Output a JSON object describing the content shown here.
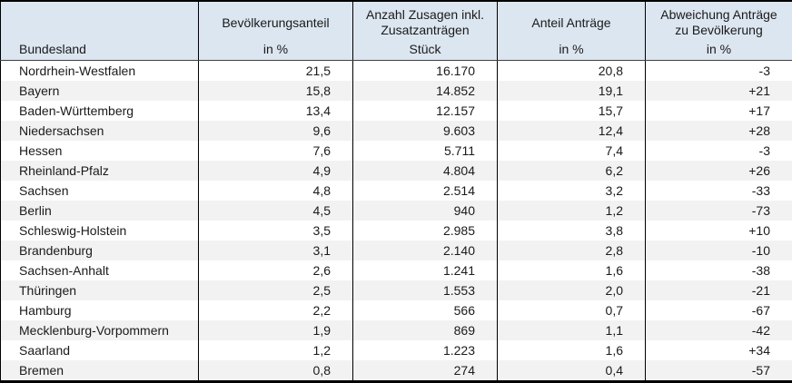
{
  "table": {
    "columns": [
      {
        "title": "Bundesland",
        "unit": ""
      },
      {
        "title": "Bevölkerungsanteil",
        "unit": "in %"
      },
      {
        "title": "Anzahl Zusagen inkl. Zusatzanträgen",
        "unit": "Stück"
      },
      {
        "title": "Anteil Anträge",
        "unit": "in %"
      },
      {
        "title": "Abweichung Anträge zu Bevölkerung",
        "unit": "in %"
      }
    ],
    "rows": [
      {
        "cells": [
          "Nordrhein-Westfalen",
          "21,5",
          "16.170",
          "20,8",
          "-3"
        ]
      },
      {
        "cells": [
          "Bayern",
          "15,8",
          "14.852",
          "19,1",
          "+21"
        ]
      },
      {
        "cells": [
          "Baden-Württemberg",
          "13,4",
          "12.157",
          "15,7",
          "+17"
        ]
      },
      {
        "cells": [
          "Niedersachsen",
          "9,6",
          "9.603",
          "12,4",
          "+28"
        ]
      },
      {
        "cells": [
          "Hessen",
          "7,6",
          "5.711",
          "7,4",
          "-3"
        ]
      },
      {
        "cells": [
          "Rheinland-Pfalz",
          "4,9",
          "4.804",
          "6,2",
          "+26"
        ]
      },
      {
        "cells": [
          "Sachsen",
          "4,8",
          "2.514",
          "3,2",
          "-33"
        ]
      },
      {
        "cells": [
          "Berlin",
          "4,5",
          "940",
          "1,2",
          "-73"
        ]
      },
      {
        "cells": [
          "Schleswig-Holstein",
          "3,5",
          "2.985",
          "3,8",
          "+10"
        ]
      },
      {
        "cells": [
          "Brandenburg",
          "3,1",
          "2.140",
          "2,8",
          "-10"
        ]
      },
      {
        "cells": [
          "Sachsen-Anhalt",
          "2,6",
          "1.241",
          "1,6",
          "-38"
        ]
      },
      {
        "cells": [
          "Thüringen",
          "2,5",
          "1.553",
          "2,0",
          "-21"
        ]
      },
      {
        "cells": [
          "Hamburg",
          "2,2",
          "566",
          "0,7",
          "-67"
        ]
      },
      {
        "cells": [
          "Mecklenburg-Vorpommern",
          "1,9",
          "869",
          "1,1",
          "-42"
        ]
      },
      {
        "cells": [
          "Saarland",
          "1,2",
          "1.223",
          "1,6",
          "+34"
        ]
      },
      {
        "cells": [
          "Bremen",
          "0,8",
          "274",
          "0,4",
          "-57"
        ]
      }
    ]
  },
  "colors": {
    "header_bg": "#dce6f1",
    "band_bg": "#f2f2f2",
    "border": "#000000"
  }
}
